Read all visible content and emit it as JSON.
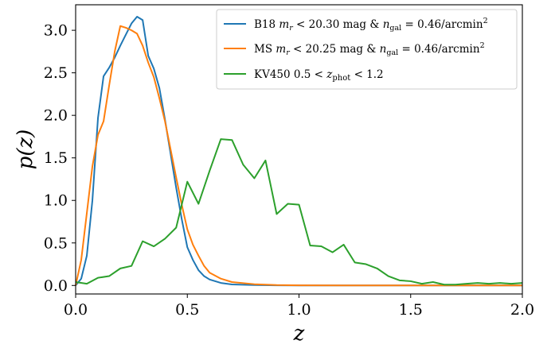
{
  "chart_data": {
    "type": "line",
    "xlabel": "z",
    "ylabel": "p(z)",
    "xlim": [
      0.0,
      2.0
    ],
    "ylim": [
      -0.1,
      3.3
    ],
    "x_ticks": [
      0.0,
      0.5,
      1.0,
      1.5,
      2.0
    ],
    "x_tick_labels": [
      "0.0",
      "0.5",
      "1.0",
      "1.5",
      "2.0"
    ],
    "y_ticks": [
      0.0,
      0.5,
      1.0,
      1.5,
      2.0,
      2.5,
      3.0
    ],
    "y_tick_labels": [
      "0.0",
      "0.5",
      "1.0",
      "1.5",
      "2.0",
      "2.5",
      "3.0"
    ],
    "grid": false,
    "legend_position": "top-right",
    "series": [
      {
        "name": "B18 m_r < 20.30 mag & n_gal = 0.46/arcmin^2",
        "legend_parts": {
          "prefix": "B18 ",
          "m": "m",
          "r": "r",
          "mid": " < 20.30 mag & ",
          "n": "n",
          "gal": "gal",
          "eq": " = 0.46/arcmin",
          "sup": "2"
        },
        "color": "#1f77b4",
        "x": [
          0.0,
          0.025,
          0.05,
          0.075,
          0.1,
          0.125,
          0.15,
          0.175,
          0.2,
          0.225,
          0.25,
          0.275,
          0.3,
          0.325,
          0.35,
          0.375,
          0.4,
          0.425,
          0.45,
          0.475,
          0.5,
          0.525,
          0.55,
          0.575,
          0.6,
          0.65,
          0.7,
          0.8,
          0.9,
          1.0,
          1.2,
          1.5,
          1.8,
          2.0
        ],
        "y": [
          0.0,
          0.08,
          0.35,
          1.0,
          1.97,
          2.46,
          2.56,
          2.68,
          2.82,
          2.95,
          3.08,
          3.16,
          3.12,
          2.7,
          2.55,
          2.32,
          1.95,
          1.55,
          1.15,
          0.78,
          0.45,
          0.3,
          0.18,
          0.11,
          0.07,
          0.03,
          0.012,
          0.005,
          0.002,
          0.001,
          0.0,
          0.0,
          0.0,
          0.0
        ]
      },
      {
        "name": "MS m_r < 20.25 mag & n_gal = 0.46/arcmin^2",
        "legend_parts": {
          "prefix": "MS ",
          "m": "m",
          "r": "r",
          "mid": " < 20.25 mag & ",
          "n": "n",
          "gal": "gal",
          "eq": " = 0.46/arcmin",
          "sup": "2"
        },
        "color": "#ff7f0e",
        "x": [
          0.0,
          0.025,
          0.05,
          0.075,
          0.1,
          0.125,
          0.15,
          0.175,
          0.2,
          0.225,
          0.25,
          0.275,
          0.3,
          0.325,
          0.35,
          0.375,
          0.4,
          0.425,
          0.45,
          0.475,
          0.5,
          0.525,
          0.55,
          0.575,
          0.6,
          0.65,
          0.7,
          0.8,
          0.9,
          1.0,
          1.2,
          1.5,
          1.8,
          2.0
        ],
        "y": [
          0.0,
          0.3,
          0.85,
          1.4,
          1.77,
          1.93,
          2.35,
          2.75,
          3.05,
          3.03,
          3.0,
          2.96,
          2.82,
          2.62,
          2.45,
          2.2,
          1.93,
          1.6,
          1.27,
          0.95,
          0.66,
          0.48,
          0.35,
          0.23,
          0.15,
          0.08,
          0.04,
          0.015,
          0.005,
          0.002,
          0.0,
          0.0,
          0.0,
          0.0
        ]
      },
      {
        "name": "KV450 0.5 < z_phot < 1.2",
        "legend_parts": {
          "prefix": "KV450 0.5 < ",
          "z": "z",
          "sub": "phot",
          "suffix": " < 1.2"
        },
        "color": "#2ca02c",
        "x": [
          0.0,
          0.05,
          0.1,
          0.15,
          0.2,
          0.25,
          0.3,
          0.35,
          0.4,
          0.45,
          0.5,
          0.55,
          0.6,
          0.65,
          0.7,
          0.75,
          0.8,
          0.85,
          0.9,
          0.95,
          1.0,
          1.05,
          1.1,
          1.15,
          1.2,
          1.25,
          1.3,
          1.35,
          1.4,
          1.45,
          1.5,
          1.55,
          1.6,
          1.65,
          1.7,
          1.75,
          1.8,
          1.85,
          1.9,
          1.95,
          2.0
        ],
        "y": [
          0.04,
          0.02,
          0.09,
          0.11,
          0.2,
          0.23,
          0.52,
          0.46,
          0.55,
          0.68,
          1.22,
          0.96,
          1.35,
          1.72,
          1.71,
          1.42,
          1.26,
          1.47,
          0.84,
          0.96,
          0.95,
          0.47,
          0.46,
          0.39,
          0.48,
          0.27,
          0.25,
          0.2,
          0.11,
          0.06,
          0.05,
          0.02,
          0.04,
          0.01,
          0.01,
          0.02,
          0.03,
          0.02,
          0.03,
          0.02,
          0.03
        ]
      }
    ]
  }
}
